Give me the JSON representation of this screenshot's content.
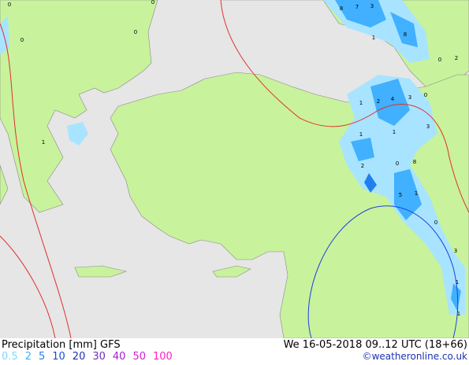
{
  "header": {
    "title": "Precipitation [mm] GFS",
    "valid": "We 16-05-2018 09..12 UTC (18+66)",
    "credit": "©weatheronline.co.uk"
  },
  "legend": [
    {
      "label": "0.5",
      "color": "#80d8ff"
    },
    {
      "label": "2",
      "color": "#40b0ff"
    },
    {
      "label": "5",
      "color": "#2080f0"
    },
    {
      "label": "10",
      "color": "#1050d0"
    },
    {
      "label": "20",
      "color": "#2030b0"
    },
    {
      "label": "30",
      "color": "#7030c0"
    },
    {
      "label": "40",
      "color": "#a020d0"
    },
    {
      "label": "50",
      "color": "#d020d0"
    },
    {
      "label": "100",
      "color": "#ff20c0"
    }
  ],
  "map": {
    "labels": [
      "0",
      "0",
      "0",
      "0",
      "8",
      "7",
      "3",
      "1",
      "8",
      "0",
      "2",
      "0",
      "1",
      "2",
      "4",
      "3",
      "3",
      "1",
      "1",
      "2",
      "0",
      "8",
      "5",
      "1",
      "0",
      "3",
      "1",
      "1",
      "1"
    ]
  }
}
